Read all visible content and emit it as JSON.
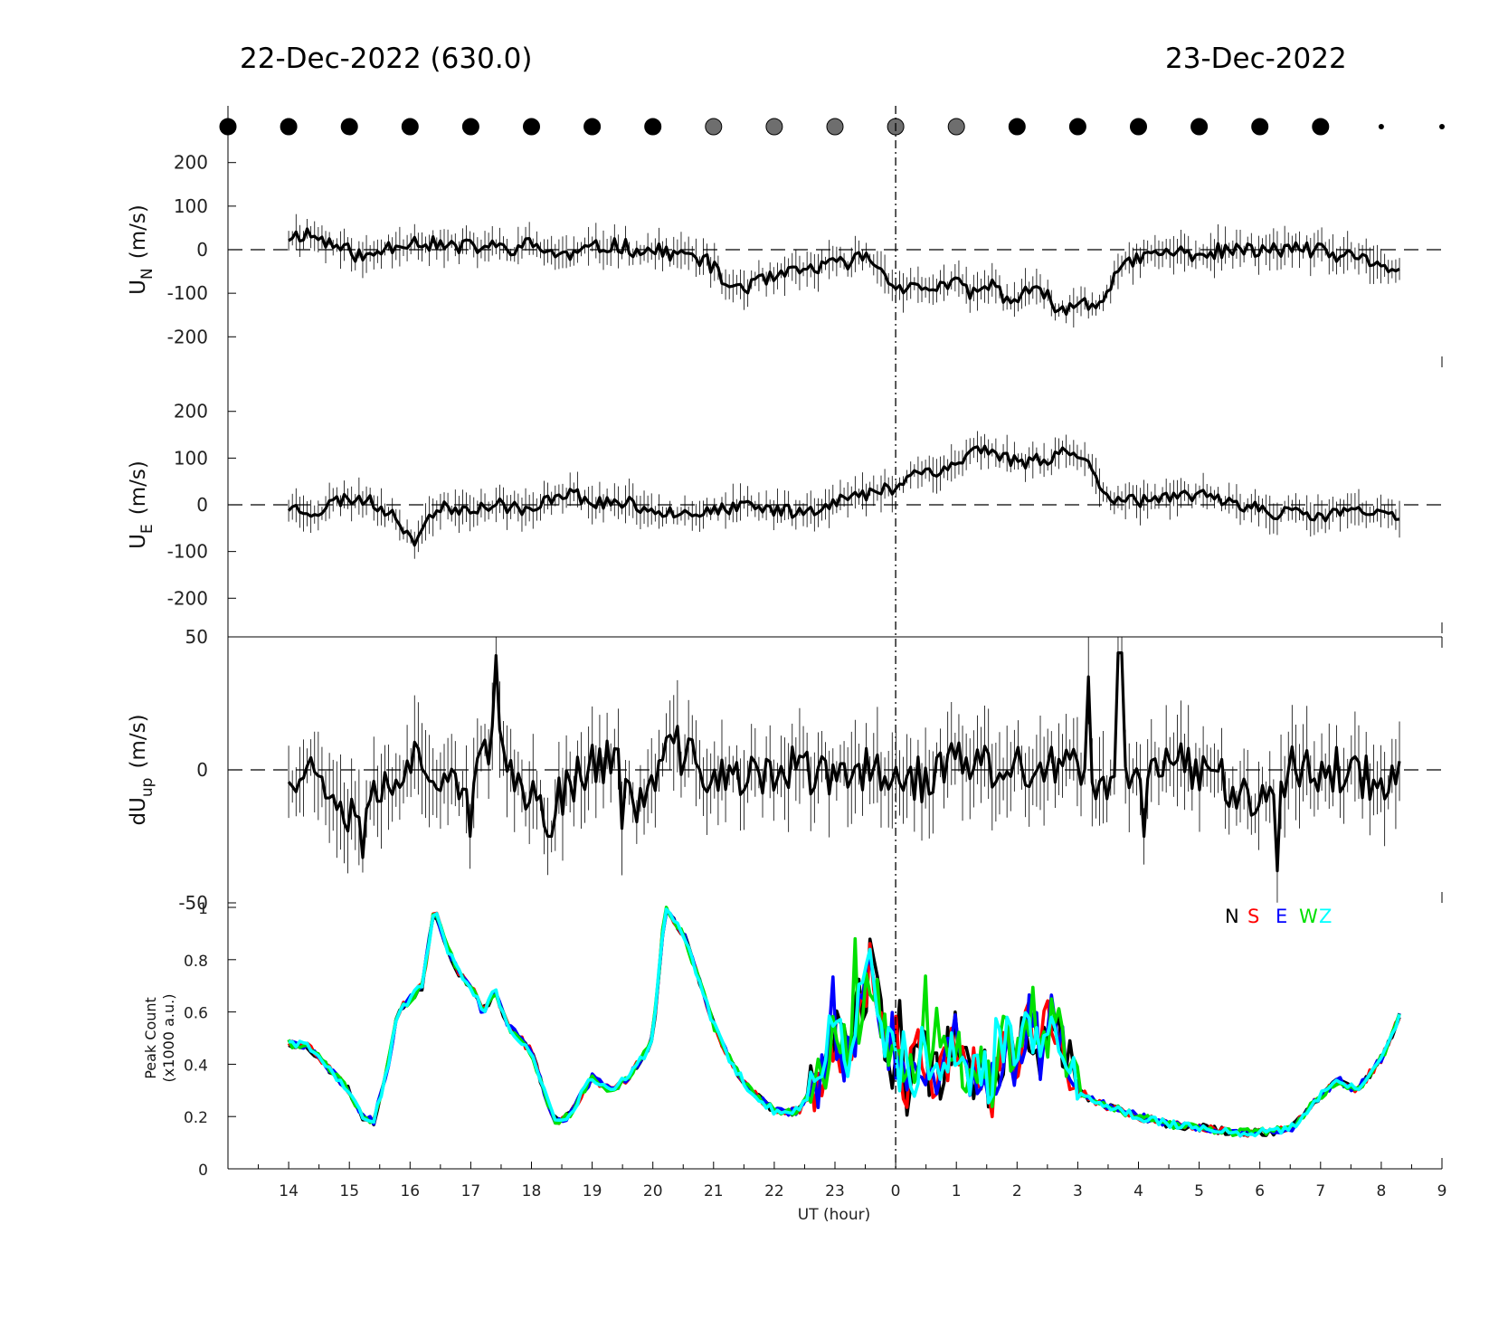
{
  "header": {
    "left_title": "22-Dec-2022 (630.0)",
    "right_title": "23-Dec-2022"
  },
  "colors": {
    "N": "#000000",
    "S": "#ff0000",
    "E": "#0000ff",
    "W": "#00e000",
    "Z": "#00ffff",
    "moon_dark": "#000000",
    "moon_gray": "#6e6e6e"
  },
  "chart_data": [
    {
      "type": "line",
      "id": "un",
      "ylabel": "U_N (m/s)",
      "ylabel_main": "U",
      "ylabel_sub": "N",
      "ylabel_unit": "(m/s)",
      "ylim": [
        -270,
        270
      ],
      "yticks": [
        200,
        100,
        0,
        -100,
        -200
      ],
      "ytick_labels": [
        "200",
        "100",
        "0",
        "-100",
        "-200"
      ],
      "zero_dashed": true,
      "x_range_hours": [
        14.0,
        32.3
      ],
      "anchors": [
        [
          14.0,
          30
        ],
        [
          14.3,
          38
        ],
        [
          14.6,
          20
        ],
        [
          15.0,
          -5
        ],
        [
          15.3,
          -20
        ],
        [
          15.6,
          5
        ],
        [
          16.0,
          22
        ],
        [
          16.4,
          12
        ],
        [
          16.8,
          5
        ],
        [
          17.2,
          8
        ],
        [
          17.6,
          2
        ],
        [
          18.0,
          12
        ],
        [
          18.3,
          -5
        ],
        [
          18.6,
          -15
        ],
        [
          19.0,
          2
        ],
        [
          19.4,
          12
        ],
        [
          19.7,
          0
        ],
        [
          20.2,
          -5
        ],
        [
          20.5,
          -12
        ],
        [
          20.9,
          -25
        ],
        [
          21.2,
          -80
        ],
        [
          21.5,
          -85
        ],
        [
          21.9,
          -70
        ],
        [
          22.3,
          -55
        ],
        [
          22.7,
          -40
        ],
        [
          23.0,
          -35
        ],
        [
          23.4,
          -20
        ],
        [
          23.6,
          -15
        ],
        [
          23.8,
          -60
        ],
        [
          24.2,
          -90
        ],
        [
          24.6,
          -85
        ],
        [
          25.0,
          -80
        ],
        [
          25.3,
          -100
        ],
        [
          25.6,
          -80
        ],
        [
          25.9,
          -120
        ],
        [
          26.2,
          -95
        ],
        [
          26.5,
          -110
        ],
        [
          26.8,
          -145
        ],
        [
          27.1,
          -110
        ],
        [
          27.3,
          -135
        ],
        [
          27.6,
          -60
        ],
        [
          28.0,
          -20
        ],
        [
          28.5,
          -5
        ],
        [
          29.0,
          -10
        ],
        [
          29.5,
          0
        ],
        [
          30.0,
          -5
        ],
        [
          30.5,
          5
        ],
        [
          31.0,
          -5
        ],
        [
          31.5,
          -20
        ],
        [
          32.0,
          -30
        ],
        [
          32.3,
          -55
        ]
      ],
      "noise": 18,
      "err": 35,
      "seed": 11
    },
    {
      "type": "line",
      "id": "ue",
      "ylabel": "U_E (m/s)",
      "ylabel_main": "U",
      "ylabel_sub": "E",
      "ylabel_unit": "(m/s)",
      "ylim": [
        -275,
        275
      ],
      "yticks": [
        200,
        100,
        0,
        -100,
        -200
      ],
      "ytick_labels": [
        "200",
        "100",
        "0",
        "-100",
        "-200"
      ],
      "zero_dashed": true,
      "x_range_hours": [
        14.0,
        32.3
      ],
      "anchors": [
        [
          14.0,
          -5
        ],
        [
          14.5,
          -15
        ],
        [
          14.8,
          10
        ],
        [
          15.2,
          15
        ],
        [
          15.5,
          -5
        ],
        [
          15.8,
          -20
        ],
        [
          16.0,
          -85
        ],
        [
          16.2,
          -50
        ],
        [
          16.4,
          -10
        ],
        [
          17.0,
          -5
        ],
        [
          17.5,
          0
        ],
        [
          17.8,
          -5
        ],
        [
          18.0,
          -20
        ],
        [
          18.3,
          15
        ],
        [
          18.6,
          30
        ],
        [
          19.0,
          5
        ],
        [
          19.5,
          5
        ],
        [
          20.0,
          -10
        ],
        [
          20.5,
          -15
        ],
        [
          21.0,
          -15
        ],
        [
          21.5,
          -5
        ],
        [
          22.0,
          -10
        ],
        [
          22.5,
          -15
        ],
        [
          23.0,
          10
        ],
        [
          23.5,
          20
        ],
        [
          24.0,
          40
        ],
        [
          24.3,
          70
        ],
        [
          24.7,
          75
        ],
        [
          25.0,
          85
        ],
        [
          25.3,
          120
        ],
        [
          25.6,
          115
        ],
        [
          26.0,
          90
        ],
        [
          26.5,
          100
        ],
        [
          26.9,
          120
        ],
        [
          27.2,
          80
        ],
        [
          27.5,
          20
        ],
        [
          28.0,
          10
        ],
        [
          28.5,
          10
        ],
        [
          29.0,
          20
        ],
        [
          29.5,
          10
        ],
        [
          30.0,
          -10
        ],
        [
          30.5,
          -20
        ],
        [
          31.0,
          -25
        ],
        [
          31.5,
          -10
        ],
        [
          32.0,
          -25
        ],
        [
          32.3,
          -25
        ]
      ],
      "noise": 15,
      "err": 32,
      "seed": 23
    },
    {
      "type": "line",
      "id": "dup",
      "ylabel": "dU_up (m/s)",
      "ylabel_main": "dU",
      "ylabel_sub": "up",
      "ylabel_unit": "(m/s)",
      "ylim": [
        -50,
        50
      ],
      "yticks": [
        50,
        0,
        -50
      ],
      "ytick_labels": [
        "50",
        "0",
        "-50"
      ],
      "zero_dashed": true,
      "x_range_hours": [
        14.0,
        32.3
      ],
      "anchors": [
        [
          14.0,
          0
        ],
        [
          14.5,
          0
        ],
        [
          15.0,
          -15
        ],
        [
          15.5,
          -8
        ],
        [
          16.0,
          5
        ],
        [
          16.5,
          0
        ],
        [
          17.0,
          -5
        ],
        [
          17.4,
          10
        ],
        [
          17.8,
          -5
        ],
        [
          18.3,
          -15
        ],
        [
          18.8,
          0
        ],
        [
          19.3,
          5
        ],
        [
          19.8,
          -15
        ],
        [
          20.3,
          10
        ],
        [
          20.8,
          0
        ],
        [
          21.5,
          -5
        ],
        [
          22.0,
          0
        ],
        [
          22.5,
          0
        ],
        [
          23.0,
          -5
        ],
        [
          23.5,
          0
        ],
        [
          24.0,
          0
        ],
        [
          24.5,
          -5
        ],
        [
          25.0,
          5
        ],
        [
          25.5,
          0
        ],
        [
          26.0,
          0
        ],
        [
          26.5,
          0
        ],
        [
          27.0,
          0
        ],
        [
          27.5,
          -10
        ],
        [
          28.0,
          5
        ],
        [
          28.5,
          5
        ],
        [
          29.0,
          0
        ],
        [
          29.5,
          -5
        ],
        [
          30.0,
          -10
        ],
        [
          30.5,
          0
        ],
        [
          31.0,
          0
        ],
        [
          31.5,
          0
        ],
        [
          32.0,
          -5
        ],
        [
          32.3,
          2
        ]
      ],
      "noise": 9,
      "err": 14,
      "seed": 37,
      "spikes": [
        [
          17.4,
          43
        ],
        [
          15.2,
          -33
        ],
        [
          27.7,
          44
        ],
        [
          27.2,
          35
        ],
        [
          30.3,
          -38
        ],
        [
          28.1,
          -25
        ],
        [
          19.5,
          -22
        ],
        [
          18.3,
          -25
        ],
        [
          17.0,
          -25
        ]
      ]
    },
    {
      "type": "line",
      "id": "peak",
      "ylabel": "Peak Count (x1000 a.u.)",
      "ylabel_line1": "Peak Count",
      "ylabel_line2": "(x1000 a.u.)",
      "ylim": [
        0,
        1.0
      ],
      "yticks": [
        1,
        0.8,
        0.6,
        0.4,
        0.2,
        0
      ],
      "ytick_labels": [
        "1",
        "0.8",
        "0.6",
        "0.4",
        "0.2",
        "0"
      ],
      "legend": [
        "N",
        "S",
        "E",
        "W",
        "Z"
      ],
      "legend_position": "top-right",
      "x_range_hours": [
        14.0,
        32.3
      ],
      "anchors": [
        [
          14.0,
          0.48
        ],
        [
          14.3,
          0.47
        ],
        [
          14.6,
          0.4
        ],
        [
          15.0,
          0.3
        ],
        [
          15.2,
          0.2
        ],
        [
          15.4,
          0.18
        ],
        [
          15.6,
          0.35
        ],
        [
          15.8,
          0.6
        ],
        [
          16.0,
          0.65
        ],
        [
          16.2,
          0.7
        ],
        [
          16.4,
          1.0
        ],
        [
          16.6,
          0.85
        ],
        [
          16.8,
          0.75
        ],
        [
          17.0,
          0.7
        ],
        [
          17.2,
          0.6
        ],
        [
          17.4,
          0.68
        ],
        [
          17.6,
          0.55
        ],
        [
          18.0,
          0.45
        ],
        [
          18.2,
          0.3
        ],
        [
          18.4,
          0.18
        ],
        [
          18.6,
          0.2
        ],
        [
          19.0,
          0.35
        ],
        [
          19.3,
          0.3
        ],
        [
          19.6,
          0.35
        ],
        [
          19.9,
          0.45
        ],
        [
          20.0,
          0.5
        ],
        [
          20.2,
          1.0
        ],
        [
          20.5,
          0.9
        ],
        [
          20.8,
          0.7
        ],
        [
          21.0,
          0.55
        ],
        [
          21.3,
          0.4
        ],
        [
          21.6,
          0.3
        ],
        [
          22.0,
          0.22
        ],
        [
          22.4,
          0.22
        ],
        [
          22.6,
          0.3
        ],
        [
          22.8,
          0.38
        ],
        [
          23.0,
          0.55
        ],
        [
          23.2,
          0.4
        ],
        [
          23.4,
          0.6
        ],
        [
          23.6,
          0.8
        ],
        [
          23.8,
          0.55
        ],
        [
          24.0,
          0.35
        ],
        [
          24.2,
          0.3
        ],
        [
          24.4,
          0.45
        ],
        [
          24.6,
          0.35
        ],
        [
          24.8,
          0.4
        ],
        [
          25.0,
          0.5
        ],
        [
          25.2,
          0.35
        ],
        [
          25.4,
          0.4
        ],
        [
          25.6,
          0.3
        ],
        [
          25.8,
          0.5
        ],
        [
          26.0,
          0.4
        ],
        [
          26.2,
          0.55
        ],
        [
          26.4,
          0.45
        ],
        [
          26.6,
          0.6
        ],
        [
          26.8,
          0.45
        ],
        [
          27.0,
          0.3
        ],
        [
          27.2,
          0.27
        ],
        [
          27.5,
          0.24
        ],
        [
          28.0,
          0.2
        ],
        [
          28.5,
          0.17
        ],
        [
          29.0,
          0.16
        ],
        [
          29.5,
          0.14
        ],
        [
          30.0,
          0.14
        ],
        [
          30.5,
          0.15
        ],
        [
          31.0,
          0.28
        ],
        [
          31.3,
          0.34
        ],
        [
          31.6,
          0.3
        ],
        [
          32.0,
          0.42
        ],
        [
          32.3,
          0.58
        ]
      ],
      "seed": 53
    }
  ],
  "x_axis": {
    "label": "UT (hour)",
    "ticks": [
      "14",
      "15",
      "16",
      "17",
      "18",
      "19",
      "20",
      "21",
      "22",
      "23",
      "0",
      "1",
      "2",
      "3",
      "4",
      "5",
      "6",
      "7",
      "8",
      "9"
    ],
    "range_hours": [
      13.0,
      33.0
    ],
    "midnight_hour": 24.0
  },
  "moon_markers": [
    "dark",
    "dark",
    "dark",
    "dark",
    "dark",
    "dark",
    "dark",
    "dark",
    "gray",
    "gray",
    "gray",
    "gray",
    "gray",
    "dark",
    "dark",
    "dark",
    "dark",
    "dark",
    "dark",
    "tiny",
    "tiny"
  ]
}
